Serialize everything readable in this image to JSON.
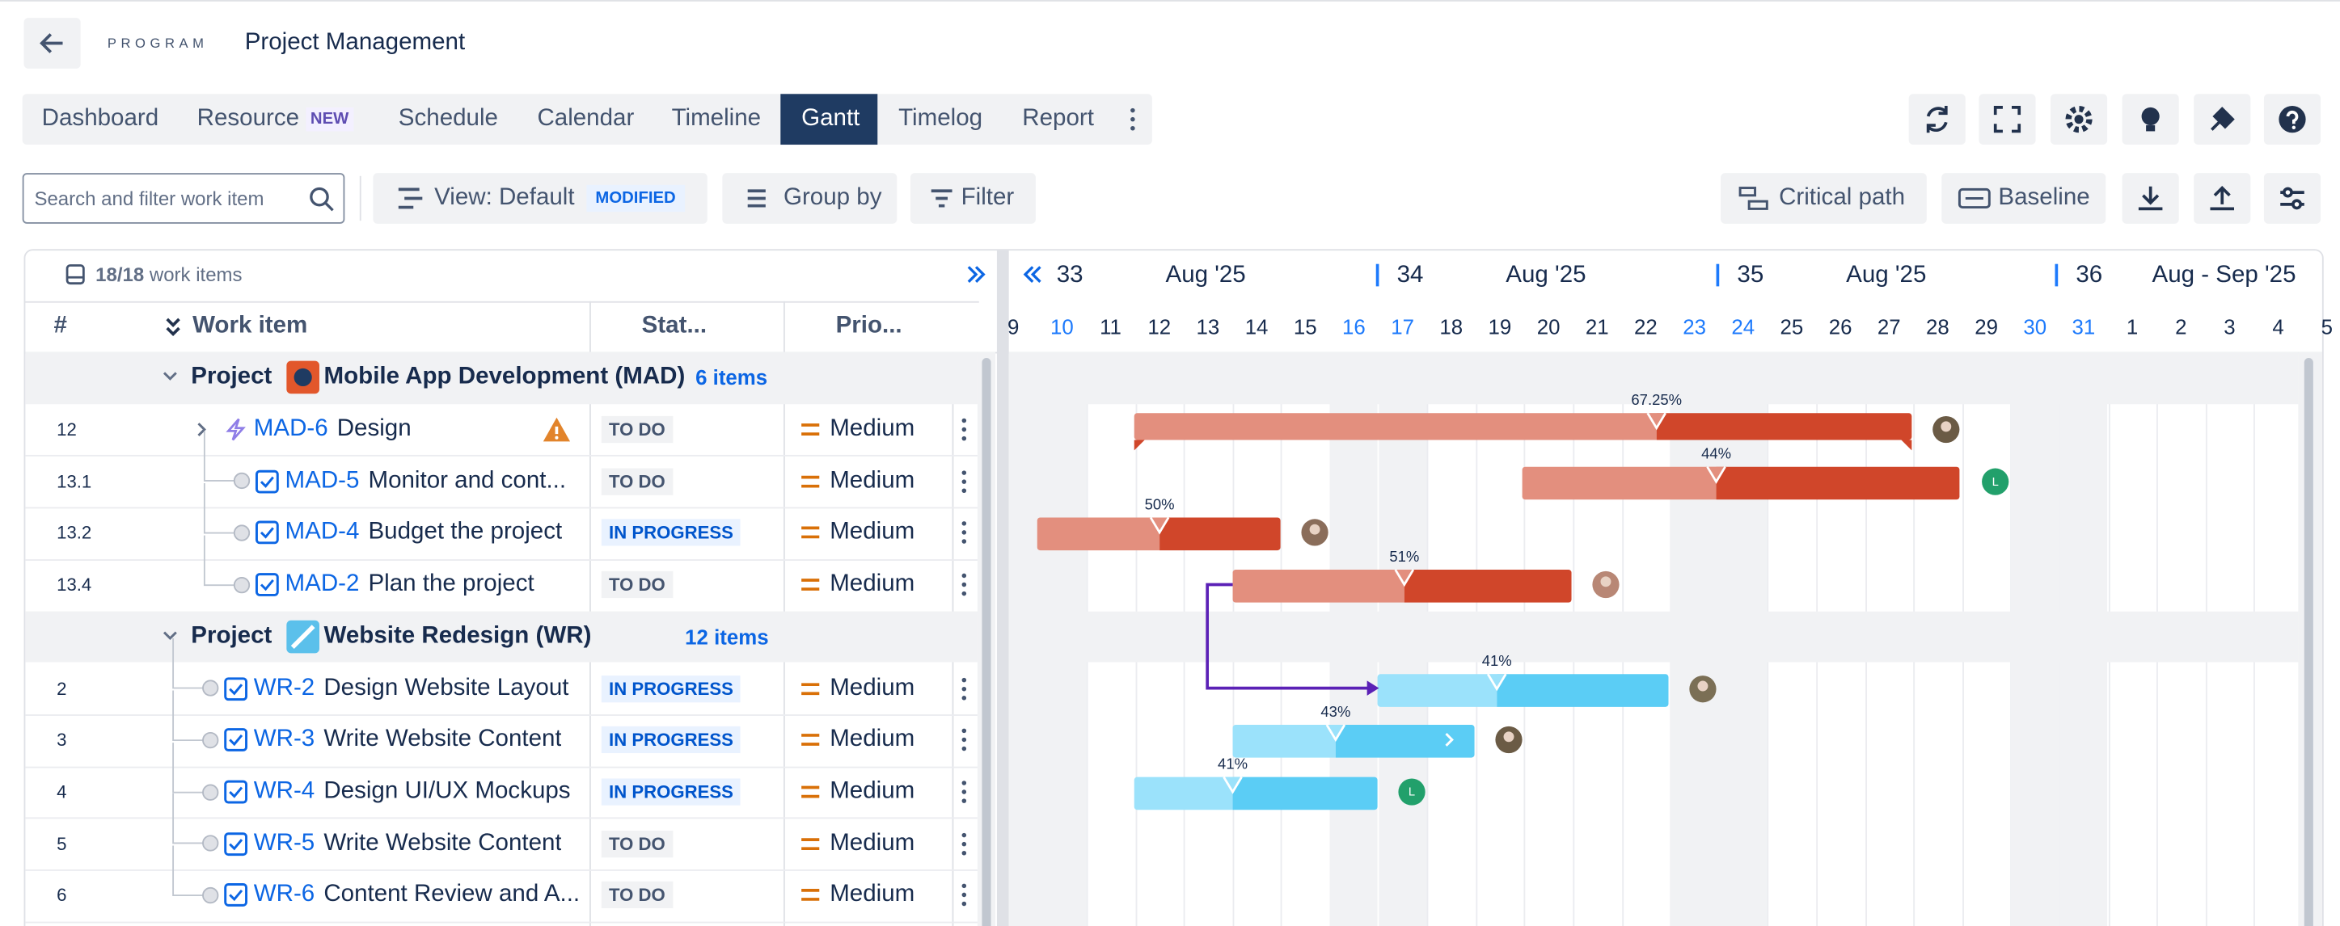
{
  "header": {
    "program": "PROGRAM",
    "title": "Project Management"
  },
  "tabs": {
    "items": [
      "Dashboard",
      "Resource",
      "Schedule",
      "Calendar",
      "Timeline",
      "Gantt",
      "Timelog",
      "Report"
    ],
    "badge": "NEW",
    "active": "Gantt"
  },
  "toolbar": {
    "search_placeholder": "Search and filter work item",
    "view": "View: Default",
    "view_badge": "MODIFIED",
    "group_by": "Group by",
    "filter": "Filter",
    "critical_path": "Critical path",
    "baseline": "Baseline"
  },
  "grid": {
    "count": "18/18",
    "count_label": "work items",
    "columns": [
      "#",
      "Work item",
      "Stat...",
      "Prio..."
    ],
    "groups": [
      {
        "label": "Project",
        "name": "Mobile App Development (MAD)",
        "count": "6 items",
        "items": [
          {
            "num": "12",
            "key": "MAD-6",
            "title": "Design",
            "status": "TO DO",
            "priority": "Medium",
            "progress": "67.25%"
          },
          {
            "num": "13.1",
            "key": "MAD-5",
            "title": "Monitor and cont...",
            "status": "TO DO",
            "priority": "Medium",
            "progress": "44%",
            "assignee": "L"
          },
          {
            "num": "13.2",
            "key": "MAD-4",
            "title": "Budget the project",
            "status": "IN PROGRESS",
            "priority": "Medium",
            "progress": "50%"
          },
          {
            "num": "13.4",
            "key": "MAD-2",
            "title": "Plan the project",
            "status": "TO DO",
            "priority": "Medium",
            "progress": "51%"
          }
        ]
      },
      {
        "label": "Project",
        "name": "Website Redesign (WR)",
        "count": "12 items",
        "items": [
          {
            "num": "2",
            "key": "WR-2",
            "title": "Design Website Layout",
            "status": "IN PROGRESS",
            "priority": "Medium",
            "progress": "41%"
          },
          {
            "num": "3",
            "key": "WR-3",
            "title": "Write Website Content",
            "status": "IN PROGRESS",
            "priority": "Medium",
            "progress": "43%"
          },
          {
            "num": "4",
            "key": "WR-4",
            "title": "Design UI/UX Mockups",
            "status": "IN PROGRESS",
            "priority": "Medium",
            "progress": "41%",
            "assignee": "L"
          },
          {
            "num": "5",
            "key": "WR-5",
            "title": "Write Website Content",
            "status": "TO DO",
            "priority": "Medium"
          },
          {
            "num": "6",
            "key": "WR-6",
            "title": "Content Review and A...",
            "status": "TO DO",
            "priority": "Medium"
          }
        ]
      }
    ]
  },
  "timeline": {
    "weeks": [
      {
        "num": "33",
        "label": "Aug '25"
      },
      {
        "num": "34",
        "label": "Aug '25"
      },
      {
        "num": "35",
        "label": "Aug '25"
      },
      {
        "num": "36",
        "label": "Aug - Sep '25"
      }
    ],
    "days": [
      "9",
      "10",
      "11",
      "12",
      "13",
      "14",
      "15",
      "16",
      "17",
      "18",
      "19",
      "20",
      "21",
      "22",
      "23",
      "24",
      "25",
      "26",
      "27",
      "28",
      "29",
      "30",
      "31",
      "1",
      "2",
      "3",
      "4",
      "5"
    ]
  }
}
